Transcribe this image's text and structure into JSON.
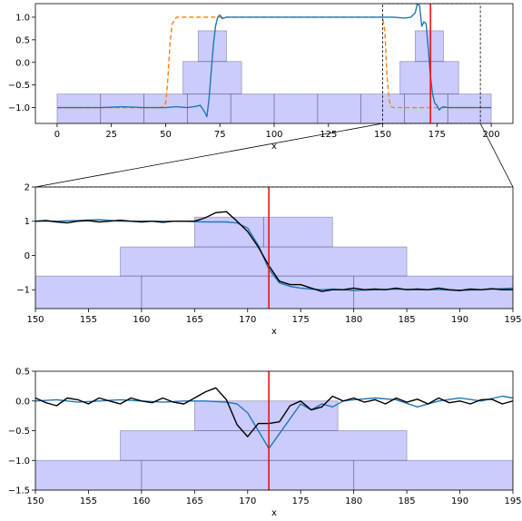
{
  "colors": {
    "box_fill": "#6b6bf5",
    "box_edge": "#555577",
    "marker": "#ff0000",
    "series_blue": "#1f77b4",
    "series_orange": "#ff7f0e",
    "series_black": "#000000"
  },
  "chart_data": [
    {
      "type": "line",
      "panel": "top",
      "xlabel": "x",
      "xlim": [
        -10,
        210
      ],
      "ylim": [
        -1.35,
        1.3
      ],
      "xticks": [
        0,
        25,
        50,
        75,
        100,
        125,
        150,
        175,
        200
      ],
      "xtick_labels": [
        "0",
        "25",
        "50",
        "75",
        "100",
        "125",
        "150",
        "175",
        "200"
      ],
      "yticks": [
        -1.0,
        -0.5,
        0.0,
        0.5,
        1.0
      ],
      "ytick_labels": [
        "−1.0",
        "−0.5",
        "0.0",
        "0.5",
        "1.0"
      ],
      "marker_x": 172,
      "zoom_window": [
        150,
        195
      ],
      "boxes": [
        {
          "x0": 0,
          "x1": 20,
          "y0": -1.35,
          "y1": -0.7
        },
        {
          "x0": 20,
          "x1": 40,
          "y0": -1.35,
          "y1": -0.7
        },
        {
          "x0": 40,
          "x1": 60,
          "y0": -1.35,
          "y1": -0.7
        },
        {
          "x0": 60,
          "x1": 80,
          "y0": -1.35,
          "y1": -0.7
        },
        {
          "x0": 80,
          "x1": 100,
          "y0": -1.35,
          "y1": -0.7
        },
        {
          "x0": 100,
          "x1": 120,
          "y0": -1.35,
          "y1": -0.7
        },
        {
          "x0": 120,
          "x1": 140,
          "y0": -1.35,
          "y1": -0.7
        },
        {
          "x0": 140,
          "x1": 160,
          "y0": -1.35,
          "y1": -0.7
        },
        {
          "x0": 160,
          "x1": 180,
          "y0": -1.35,
          "y1": -0.7
        },
        {
          "x0": 180,
          "x1": 200,
          "y0": -1.35,
          "y1": -0.7
        },
        {
          "x0": 58,
          "x1": 85,
          "y0": -0.7,
          "y1": 0.02
        },
        {
          "x0": 158,
          "x1": 185,
          "y0": -0.7,
          "y1": 0.02
        },
        {
          "x0": 65,
          "x1": 78,
          "y0": 0.02,
          "y1": 0.7
        },
        {
          "x0": 165,
          "x1": 178,
          "y0": 0.02,
          "y1": 0.7
        }
      ],
      "series": [
        {
          "role": "target",
          "color": "orange",
          "dashed": true,
          "x": [
            0,
            48,
            50,
            51,
            52,
            53,
            55,
            150,
            151,
            152,
            153,
            154,
            155,
            200
          ],
          "y": [
            -1.0,
            -1.0,
            -0.9,
            -0.4,
            0.4,
            0.85,
            1.0,
            1.0,
            0.7,
            -0.3,
            -0.85,
            -0.98,
            -1.0,
            -1.0
          ]
        },
        {
          "role": "prediction",
          "color": "blue",
          "x": [
            0,
            10,
            20,
            30,
            40,
            50,
            55,
            60,
            63,
            66,
            68,
            69,
            70,
            71,
            72,
            73,
            74,
            75,
            76,
            78,
            80,
            90,
            100,
            110,
            120,
            130,
            140,
            150,
            155,
            160,
            163,
            165,
            166,
            167,
            168,
            169,
            170,
            171,
            172,
            173,
            174,
            175,
            176,
            177,
            178,
            180,
            190,
            200
          ],
          "y": [
            -1.0,
            -1.0,
            -1.0,
            -0.98,
            -1.0,
            -1.0,
            -0.98,
            -1.0,
            -0.98,
            -0.95,
            -1.1,
            -1.2,
            -0.8,
            -0.2,
            0.4,
            0.8,
            1.0,
            1.05,
            0.97,
            1.0,
            1.0,
            1.0,
            1.0,
            1.0,
            1.0,
            1.0,
            1.0,
            1.0,
            1.0,
            0.98,
            1.0,
            1.1,
            1.3,
            1.25,
            0.8,
            0.9,
            0.85,
            0.3,
            -0.3,
            -0.7,
            -0.9,
            -0.95,
            -1.05,
            -1.0,
            -0.98,
            -1.0,
            -1.0,
            -1.0
          ]
        }
      ]
    },
    {
      "type": "line",
      "panel": "middle",
      "xlabel": "x",
      "xlim": [
        150,
        195
      ],
      "ylim": [
        -1.55,
        2.0
      ],
      "xticks": [
        150,
        155,
        160,
        165,
        170,
        175,
        180,
        185,
        190,
        195
      ],
      "xtick_labels": [
        "150",
        "155",
        "160",
        "165",
        "170",
        "175",
        "180",
        "185",
        "190",
        "195"
      ],
      "yticks": [
        -1,
        0,
        1,
        2
      ],
      "ytick_labels": [
        "−1",
        "0",
        "1",
        "2"
      ],
      "marker_x": 172,
      "boxes": [
        {
          "x0": 150,
          "x1": 160,
          "y0": -1.55,
          "y1": -0.6
        },
        {
          "x0": 160,
          "x1": 180,
          "y0": -1.55,
          "y1": -0.6
        },
        {
          "x0": 180,
          "x1": 195,
          "y0": -1.55,
          "y1": -0.6
        },
        {
          "x0": 158,
          "x1": 185,
          "y0": -0.6,
          "y1": 0.25
        },
        {
          "x0": 165,
          "x1": 171.5,
          "y0": 0.25,
          "y1": 1.12
        },
        {
          "x0": 171.5,
          "x1": 178,
          "y0": 0.25,
          "y1": 1.12
        }
      ],
      "series": [
        {
          "role": "prediction",
          "color": "blue",
          "x": [
            150,
            152,
            154,
            156,
            158,
            160,
            162,
            164,
            166,
            168,
            169,
            170,
            171,
            172,
            173,
            174,
            175,
            176,
            177,
            178,
            180,
            182,
            184,
            186,
            188,
            190,
            192,
            195
          ],
          "y": [
            1.0,
            1.0,
            1.02,
            1.05,
            1.0,
            1.0,
            1.0,
            1.0,
            0.98,
            0.98,
            0.95,
            0.8,
            0.3,
            -0.4,
            -0.8,
            -0.9,
            -0.95,
            -0.98,
            -1.0,
            -0.98,
            -1.02,
            -1.0,
            -0.98,
            -1.0,
            -1.0,
            -1.02,
            -1.0,
            -0.95
          ]
        },
        {
          "role": "observation",
          "color": "black",
          "x": [
            150,
            151,
            152,
            153,
            154,
            155,
            156,
            157,
            158,
            159,
            160,
            161,
            162,
            163,
            164,
            165,
            166,
            167,
            168,
            169,
            170,
            171,
            172,
            173,
            174,
            175,
            176,
            177,
            178,
            179,
            180,
            181,
            182,
            183,
            184,
            185,
            186,
            187,
            188,
            189,
            190,
            191,
            192,
            193,
            194,
            195
          ],
          "y": [
            1.0,
            1.02,
            0.98,
            0.95,
            1.0,
            1.02,
            0.98,
            1.0,
            1.03,
            1.0,
            0.98,
            1.0,
            0.97,
            1.0,
            1.0,
            1.0,
            1.1,
            1.25,
            1.28,
            1.0,
            0.7,
            0.25,
            -0.3,
            -0.75,
            -0.85,
            -0.85,
            -0.95,
            -1.05,
            -1.0,
            -1.0,
            -0.95,
            -1.0,
            -0.98,
            -1.0,
            -0.95,
            -1.0,
            -0.98,
            -1.0,
            -0.95,
            -1.0,
            -1.02,
            -0.98,
            -1.0,
            -0.97,
            -1.0,
            -1.0
          ]
        }
      ]
    },
    {
      "type": "line",
      "panel": "bottom",
      "xlabel": "x",
      "xlim": [
        150,
        195
      ],
      "ylim": [
        -1.5,
        0.5
      ],
      "xticks": [
        150,
        155,
        160,
        165,
        170,
        175,
        180,
        185,
        190,
        195
      ],
      "xtick_labels": [
        "150",
        "155",
        "160",
        "165",
        "170",
        "175",
        "180",
        "185",
        "190",
        "195"
      ],
      "yticks": [
        -1.5,
        -1.0,
        -0.5,
        0.0,
        0.5
      ],
      "ytick_labels": [
        "−1.5",
        "−1.0",
        "−0.5",
        "0.0",
        "0.5"
      ],
      "marker_x": 172,
      "boxes": [
        {
          "x0": 150,
          "x1": 160,
          "y0": -1.5,
          "y1": -1.0
        },
        {
          "x0": 160,
          "x1": 172,
          "y0": -1.5,
          "y1": -1.0
        },
        {
          "x0": 172,
          "x1": 180,
          "y0": -1.5,
          "y1": -1.0
        },
        {
          "x0": 180,
          "x1": 195,
          "y0": -1.5,
          "y1": -1.0
        },
        {
          "x0": 158,
          "x1": 185,
          "y0": -1.0,
          "y1": -0.5
        },
        {
          "x0": 165,
          "x1": 178.5,
          "y0": -0.5,
          "y1": 0.0
        }
      ],
      "series": [
        {
          "role": "prediction",
          "color": "blue",
          "x": [
            150,
            152,
            154,
            156,
            158,
            160,
            162,
            164,
            166,
            168,
            169,
            170,
            171,
            172,
            173,
            174,
            175,
            176,
            177,
            178,
            179,
            180,
            182,
            184,
            186,
            188,
            190,
            192,
            194,
            195
          ],
          "y": [
            0.0,
            0.02,
            -0.02,
            0.0,
            0.02,
            0.0,
            -0.02,
            0.0,
            0.0,
            -0.02,
            -0.05,
            -0.2,
            -0.5,
            -0.8,
            -0.55,
            -0.3,
            -0.05,
            -0.15,
            -0.05,
            -0.1,
            0.0,
            0.02,
            0.05,
            0.02,
            -0.1,
            0.0,
            0.05,
            0.0,
            0.08,
            0.05
          ]
        },
        {
          "role": "observation",
          "color": "black",
          "x": [
            150,
            151,
            152,
            153,
            154,
            155,
            156,
            157,
            158,
            159,
            160,
            161,
            162,
            163,
            164,
            165,
            166,
            167,
            168,
            169,
            170,
            171,
            172,
            173,
            174,
            175,
            176,
            177,
            178,
            179,
            180,
            181,
            182,
            183,
            184,
            185,
            186,
            187,
            188,
            189,
            190,
            191,
            192,
            193,
            194,
            195
          ],
          "y": [
            0.05,
            -0.03,
            -0.08,
            0.05,
            0.02,
            -0.05,
            0.05,
            0.0,
            -0.05,
            0.05,
            0.0,
            -0.03,
            0.05,
            -0.02,
            -0.05,
            0.05,
            0.15,
            0.22,
            0.02,
            -0.4,
            -0.6,
            -0.38,
            -0.38,
            -0.35,
            -0.08,
            0.0,
            -0.15,
            -0.1,
            0.08,
            0.0,
            0.05,
            -0.02,
            0.02,
            -0.05,
            0.05,
            -0.02,
            0.03,
            -0.05,
            0.05,
            -0.03,
            0.0,
            -0.05,
            0.02,
            0.03,
            -0.05,
            0.0
          ]
        }
      ]
    }
  ]
}
